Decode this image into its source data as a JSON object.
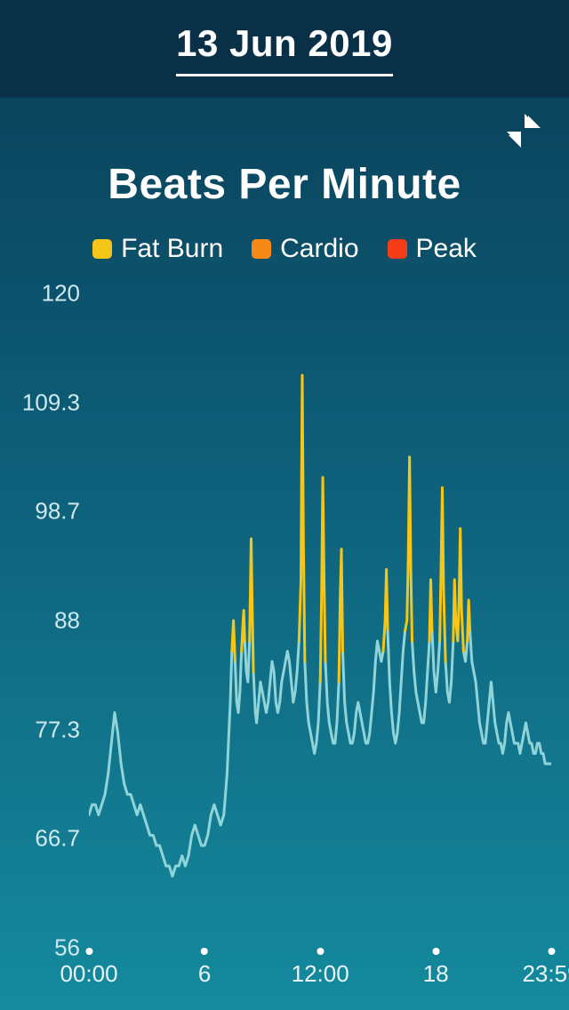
{
  "header": {
    "date_label": "13 Jun 2019"
  },
  "chart": {
    "title": "Beats Per Minute",
    "type": "line",
    "legend": [
      {
        "label": "Fat Burn",
        "color": "#f5c518"
      },
      {
        "label": "Cardio",
        "color": "#f58a18"
      },
      {
        "label": "Peak",
        "color": "#f53d18"
      }
    ],
    "y_axis": {
      "min": 56,
      "max": 120,
      "ticks": [
        56,
        66.7,
        77.3,
        88,
        98.7,
        109.3,
        120
      ],
      "tick_labels": [
        "56",
        "66.7",
        "77.3",
        "88",
        "98.7",
        "109.3",
        "120"
      ],
      "label_color": "#cfe8ee",
      "label_fontsize": 26
    },
    "x_axis": {
      "min_minutes": 0,
      "max_minutes": 1439,
      "ticks_minutes": [
        0,
        360,
        720,
        1080,
        1439
      ],
      "tick_labels": [
        "00:00",
        "6",
        "12:00",
        "18",
        "23:59"
      ],
      "label_color": "#e8f4f6",
      "label_fontsize": 26,
      "tick_dot_color": "#ffffff"
    },
    "colors": {
      "base_line": "#8fd4d8",
      "fatburn": "#f5c518",
      "cardio": "#f58a18",
      "peak": "#f53d18",
      "background_top": "#0a3d55",
      "background_bottom": "#158a9e",
      "topbar": "#0a3048"
    },
    "thresholds": {
      "fatburn_start": 88,
      "cardio_start": 121,
      "peak_start": 150
    },
    "line_width": 3,
    "data": [
      [
        0,
        69
      ],
      [
        10,
        70
      ],
      [
        20,
        70
      ],
      [
        30,
        69
      ],
      [
        40,
        70
      ],
      [
        50,
        71
      ],
      [
        60,
        73
      ],
      [
        70,
        76
      ],
      [
        80,
        79
      ],
      [
        90,
        77
      ],
      [
        100,
        74
      ],
      [
        110,
        72
      ],
      [
        120,
        71
      ],
      [
        130,
        71
      ],
      [
        140,
        70
      ],
      [
        150,
        69
      ],
      [
        160,
        70
      ],
      [
        170,
        69
      ],
      [
        180,
        68
      ],
      [
        190,
        67
      ],
      [
        200,
        67
      ],
      [
        210,
        66
      ],
      [
        220,
        66
      ],
      [
        230,
        65
      ],
      [
        240,
        64
      ],
      [
        250,
        64
      ],
      [
        260,
        63
      ],
      [
        270,
        64
      ],
      [
        280,
        64
      ],
      [
        290,
        65
      ],
      [
        300,
        64
      ],
      [
        310,
        65
      ],
      [
        320,
        67
      ],
      [
        330,
        68
      ],
      [
        340,
        67
      ],
      [
        350,
        66
      ],
      [
        360,
        66
      ],
      [
        370,
        67
      ],
      [
        380,
        69
      ],
      [
        390,
        70
      ],
      [
        400,
        69
      ],
      [
        410,
        68
      ],
      [
        420,
        69
      ],
      [
        430,
        73
      ],
      [
        440,
        80
      ],
      [
        445,
        85
      ],
      [
        450,
        88
      ],
      [
        455,
        84
      ],
      [
        460,
        80
      ],
      [
        465,
        79
      ],
      [
        470,
        81
      ],
      [
        475,
        85
      ],
      [
        480,
        88
      ],
      [
        482,
        89
      ],
      [
        485,
        86
      ],
      [
        490,
        83
      ],
      [
        495,
        82
      ],
      [
        500,
        86
      ],
      [
        505,
        96
      ],
      [
        508,
        90
      ],
      [
        512,
        83
      ],
      [
        518,
        79
      ],
      [
        522,
        78
      ],
      [
        528,
        80
      ],
      [
        534,
        82
      ],
      [
        540,
        81
      ],
      [
        546,
        80
      ],
      [
        552,
        79
      ],
      [
        558,
        80
      ],
      [
        564,
        82
      ],
      [
        570,
        84
      ],
      [
        576,
        83
      ],
      [
        582,
        80
      ],
      [
        588,
        79
      ],
      [
        594,
        80
      ],
      [
        600,
        82
      ],
      [
        606,
        83
      ],
      [
        612,
        84
      ],
      [
        618,
        85
      ],
      [
        624,
        84
      ],
      [
        630,
        82
      ],
      [
        636,
        80
      ],
      [
        642,
        81
      ],
      [
        648,
        83
      ],
      [
        654,
        86
      ],
      [
        660,
        92
      ],
      [
        664,
        112
      ],
      [
        668,
        95
      ],
      [
        672,
        84
      ],
      [
        678,
        80
      ],
      [
        684,
        78
      ],
      [
        690,
        77
      ],
      [
        696,
        76
      ],
      [
        702,
        75
      ],
      [
        708,
        76
      ],
      [
        714,
        78
      ],
      [
        720,
        82
      ],
      [
        724,
        90
      ],
      [
        728,
        102
      ],
      [
        732,
        92
      ],
      [
        736,
        84
      ],
      [
        742,
        80
      ],
      [
        748,
        78
      ],
      [
        754,
        77
      ],
      [
        760,
        76
      ],
      [
        766,
        76
      ],
      [
        772,
        78
      ],
      [
        778,
        82
      ],
      [
        782,
        90
      ],
      [
        786,
        95
      ],
      [
        790,
        85
      ],
      [
        796,
        80
      ],
      [
        802,
        78
      ],
      [
        808,
        77
      ],
      [
        814,
        76
      ],
      [
        820,
        76
      ],
      [
        826,
        77
      ],
      [
        832,
        79
      ],
      [
        838,
        80
      ],
      [
        844,
        79
      ],
      [
        850,
        78
      ],
      [
        856,
        77
      ],
      [
        862,
        76
      ],
      [
        868,
        76
      ],
      [
        874,
        77
      ],
      [
        880,
        79
      ],
      [
        886,
        81
      ],
      [
        892,
        84
      ],
      [
        898,
        86
      ],
      [
        904,
        85
      ],
      [
        910,
        84
      ],
      [
        916,
        85
      ],
      [
        922,
        88
      ],
      [
        926,
        93
      ],
      [
        930,
        87
      ],
      [
        936,
        82
      ],
      [
        942,
        79
      ],
      [
        948,
        77
      ],
      [
        954,
        76
      ],
      [
        960,
        77
      ],
      [
        966,
        79
      ],
      [
        972,
        82
      ],
      [
        978,
        85
      ],
      [
        984,
        87
      ],
      [
        990,
        88
      ],
      [
        994,
        94
      ],
      [
        998,
        104
      ],
      [
        1002,
        93
      ],
      [
        1006,
        86
      ],
      [
        1012,
        83
      ],
      [
        1018,
        81
      ],
      [
        1024,
        80
      ],
      [
        1030,
        79
      ],
      [
        1036,
        78
      ],
      [
        1042,
        78
      ],
      [
        1048,
        80
      ],
      [
        1054,
        83
      ],
      [
        1060,
        86
      ],
      [
        1064,
        92
      ],
      [
        1068,
        87
      ],
      [
        1074,
        83
      ],
      [
        1080,
        81
      ],
      [
        1086,
        83
      ],
      [
        1092,
        86
      ],
      [
        1096,
        93
      ],
      [
        1100,
        101
      ],
      [
        1104,
        91
      ],
      [
        1110,
        84
      ],
      [
        1116,
        81
      ],
      [
        1122,
        80
      ],
      [
        1128,
        82
      ],
      [
        1134,
        86
      ],
      [
        1138,
        92
      ],
      [
        1142,
        88
      ],
      [
        1148,
        86
      ],
      [
        1152,
        90
      ],
      [
        1156,
        97
      ],
      [
        1160,
        89
      ],
      [
        1166,
        85
      ],
      [
        1172,
        84
      ],
      [
        1178,
        86
      ],
      [
        1182,
        90
      ],
      [
        1186,
        87
      ],
      [
        1192,
        84
      ],
      [
        1198,
        83
      ],
      [
        1204,
        82
      ],
      [
        1210,
        80
      ],
      [
        1216,
        78
      ],
      [
        1222,
        77
      ],
      [
        1228,
        76
      ],
      [
        1234,
        76
      ],
      [
        1240,
        78
      ],
      [
        1246,
        80
      ],
      [
        1252,
        82
      ],
      [
        1258,
        80
      ],
      [
        1264,
        78
      ],
      [
        1270,
        77
      ],
      [
        1276,
        76
      ],
      [
        1282,
        76
      ],
      [
        1288,
        75
      ],
      [
        1294,
        76
      ],
      [
        1300,
        78
      ],
      [
        1306,
        79
      ],
      [
        1312,
        78
      ],
      [
        1318,
        77
      ],
      [
        1324,
        76
      ],
      [
        1330,
        76
      ],
      [
        1336,
        76
      ],
      [
        1342,
        75
      ],
      [
        1348,
        76
      ],
      [
        1354,
        77
      ],
      [
        1360,
        78
      ],
      [
        1366,
        77
      ],
      [
        1372,
        76
      ],
      [
        1378,
        76
      ],
      [
        1384,
        75
      ],
      [
        1390,
        75
      ],
      [
        1396,
        76
      ],
      [
        1402,
        76
      ],
      [
        1408,
        75
      ],
      [
        1414,
        75
      ],
      [
        1420,
        74
      ],
      [
        1426,
        74
      ],
      [
        1432,
        74
      ],
      [
        1439,
        74
      ]
    ]
  }
}
